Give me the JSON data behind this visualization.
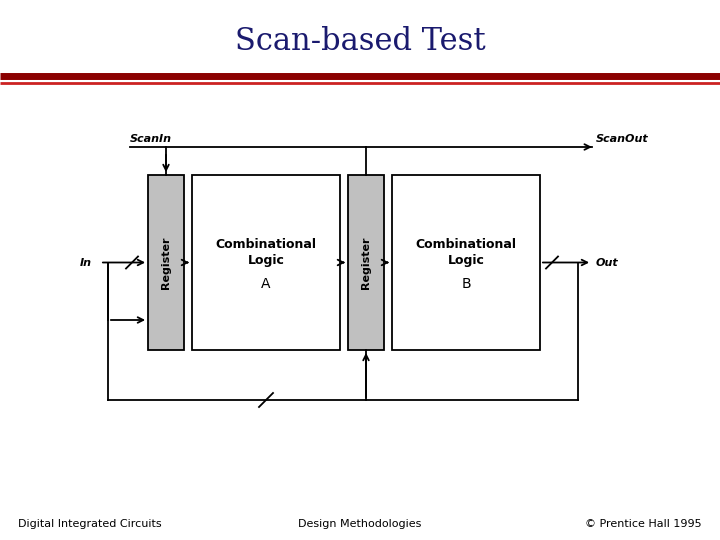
{
  "title": "Scan-based Test",
  "title_color": "#1a1a6e",
  "title_fontsize": 22,
  "footer_left": "Digital Integrated Circuits",
  "footer_center": "Design Methodologies",
  "footer_right": "© Prentice Hall 1995",
  "footer_fontsize": 8,
  "line1_color": "#8b0000",
  "line2_color": "#cc2222",
  "bg_color": "#ffffff",
  "register_fill": "#c0c0c0",
  "box_edge_color": "#000000"
}
